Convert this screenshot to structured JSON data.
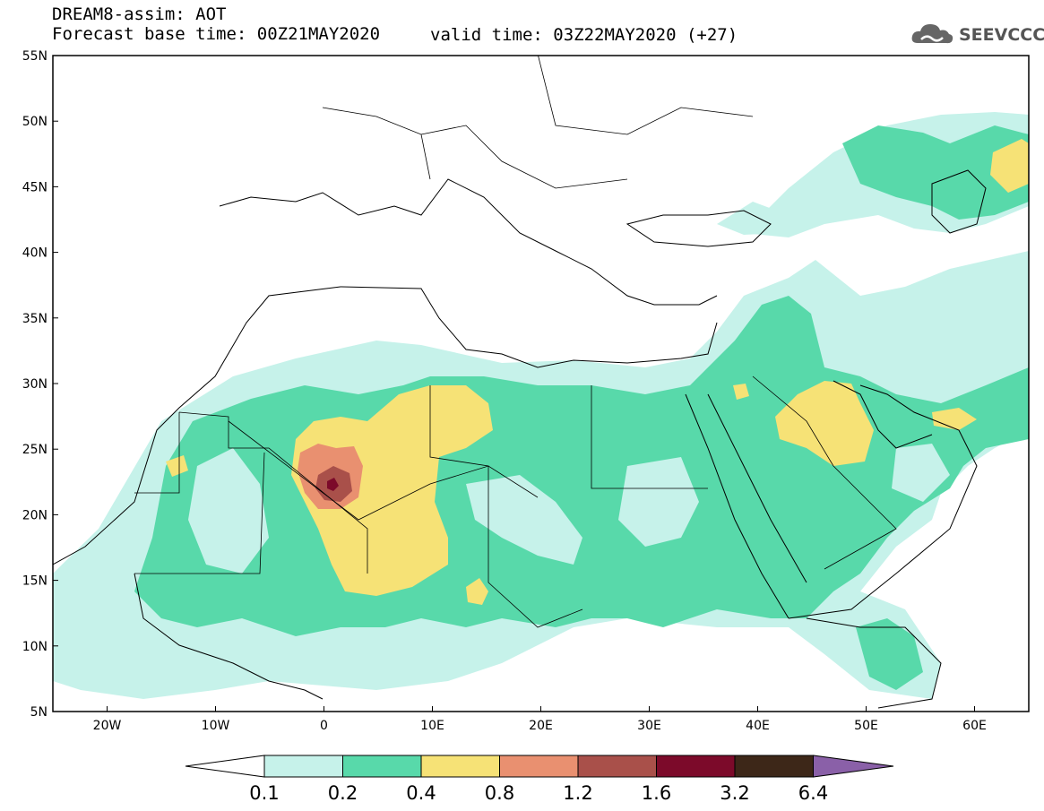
{
  "header": {
    "title": "DREAM8-assim: AOT",
    "base_time": "Forecast base time: 00Z21MAY2020",
    "valid_time": "valid time: 03Z22MAY2020 (+27)"
  },
  "logo": {
    "text": "SEEVCCC",
    "icon": "cloud-icon"
  },
  "map": {
    "extent": {
      "lon": [
        -25,
        65
      ],
      "lat": [
        5,
        55
      ]
    },
    "lat_ticks": [
      {
        "value": 55,
        "label": "55N"
      },
      {
        "value": 50,
        "label": "50N"
      },
      {
        "value": 45,
        "label": "45N"
      },
      {
        "value": 40,
        "label": "40N"
      },
      {
        "value": 35,
        "label": "35N"
      },
      {
        "value": 30,
        "label": "30N"
      },
      {
        "value": 25,
        "label": "25N"
      },
      {
        "value": 20,
        "label": "20N"
      },
      {
        "value": 15,
        "label": "15N"
      },
      {
        "value": 10,
        "label": "10N"
      },
      {
        "value": 5,
        "label": "5N"
      }
    ],
    "lon_ticks": [
      {
        "value": -20,
        "label": "20W"
      },
      {
        "value": -10,
        "label": "10W"
      },
      {
        "value": 0,
        "label": "0"
      },
      {
        "value": 10,
        "label": "10E"
      },
      {
        "value": 20,
        "label": "20E"
      },
      {
        "value": 30,
        "label": "30E"
      },
      {
        "value": 40,
        "label": "40E"
      },
      {
        "value": 50,
        "label": "50E"
      },
      {
        "value": 60,
        "label": "60E"
      }
    ]
  },
  "colorbar": {
    "labels": [
      "0.1",
      "0.2",
      "0.4",
      "0.8",
      "1.2",
      "1.6",
      "3.2",
      "6.4"
    ],
    "colors": [
      "#c6f2ea",
      "#58d9aa",
      "#f6e276",
      "#e99070",
      "#a9504a",
      "#7c0a2a",
      "#3d2718"
    ],
    "low_color": "#ffffff",
    "high_color": "#8a60a8"
  }
}
